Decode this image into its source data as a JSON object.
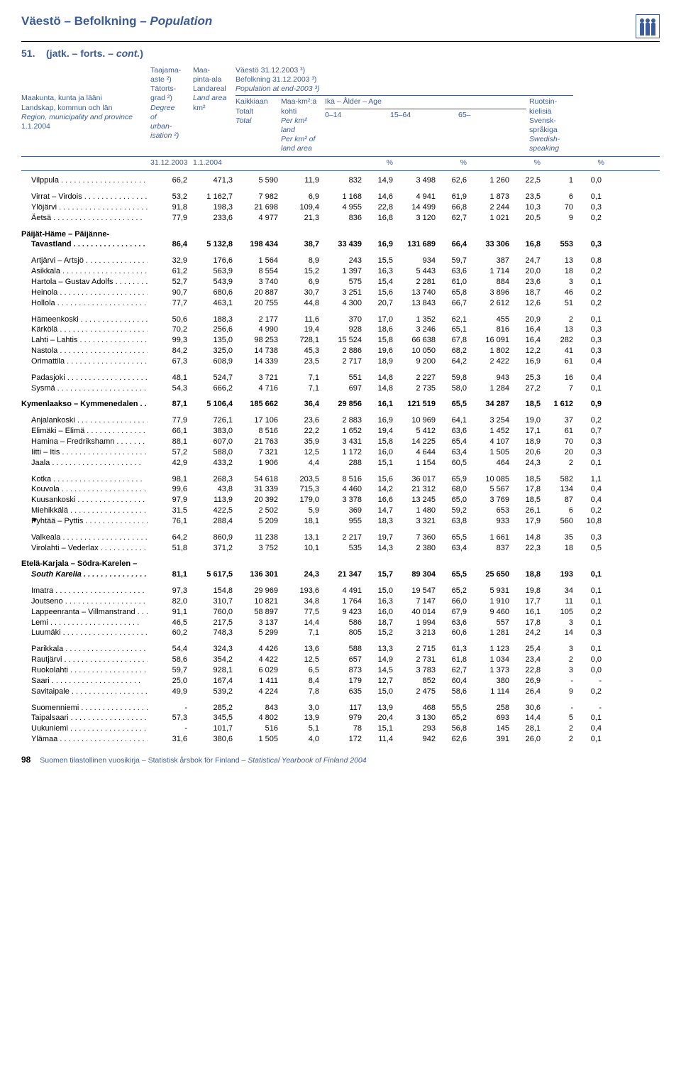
{
  "header": {
    "title_plain": "Väestö – Befolkning – ",
    "title_italic": "Population",
    "subtitle_prefix": "51.",
    "subtitle_rest": "(jatk. – forts. – ",
    "subtitle_italic": "cont.",
    "subtitle_close": ")"
  },
  "col_headers": {
    "c0_l1": "Maakunta, kunta ja lääni",
    "c0_l2": "Landskap, kommun och län",
    "c0_l3": "Region, municipality and province",
    "c0_l4": "1.1.2004",
    "c1_l1": "Taajama-",
    "c1_l2": "aste ²)",
    "c1_l3": "Tätorts-",
    "c1_l4": "grad ²)",
    "c1_l5": "Degree",
    "c1_l6": "of",
    "c1_l7": "urban-",
    "c1_l8": "isation ²)",
    "c2_l1": "Maa-",
    "c2_l2": "pinta-ala",
    "c2_l3": "Landareal",
    "c2_l4": "Land area",
    "c2_l5": "km²",
    "c3_l1": "Väestö 31.12.2003 ³)",
    "c3_l2": "Befolkning 31.12.2003 ³)",
    "c3_l3": "Population at end-2003 ³)",
    "c3_sub1": "Kaikkiaan",
    "c3_sub2": "Totalt",
    "c3_sub3": "Total",
    "c4_l1": "Maa-km²:ä",
    "c4_l2": "kohti",
    "c4_l3": "Per km² land",
    "c4_l4": "Per km² of",
    "c4_l5": "land area",
    "age_label": "Ikä – Ålder – Age",
    "age_0": "0–14",
    "age_15": "15–64",
    "age_65": "65–",
    "c12_l1": "Ruotsin-",
    "c12_l2": "kielisiä",
    "c12_l3": "Svensk-",
    "c12_l4": "språkiga",
    "c12_l5": "Swedish-",
    "c12_l6": "speaking",
    "date1": "31.12.2003",
    "date2": "1.1.2004",
    "pct": "%"
  },
  "rows": [
    {
      "t": "d",
      "ind": 1,
      "n": "Vilppula",
      "v": [
        "66,2",
        "471,3",
        "5 590",
        "11,9",
        "832",
        "14,9",
        "3 498",
        "62,6",
        "1 260",
        "22,5",
        "1",
        "0,0"
      ]
    },
    {
      "t": "sp"
    },
    {
      "t": "d",
      "ind": 1,
      "n": "Virrat – Virdois",
      "v": [
        "53,2",
        "1 162,7",
        "7 982",
        "6,9",
        "1 168",
        "14,6",
        "4 941",
        "61,9",
        "1 873",
        "23,5",
        "6",
        "0,1"
      ]
    },
    {
      "t": "d",
      "ind": 1,
      "n": "Ylöjärvi",
      "v": [
        "91,8",
        "198,3",
        "21 698",
        "109,4",
        "4 955",
        "22,8",
        "14 499",
        "66,8",
        "2 244",
        "10,3",
        "70",
        "0,3"
      ]
    },
    {
      "t": "d",
      "ind": 1,
      "n": "Äetsä",
      "v": [
        "77,9",
        "233,6",
        "4 977",
        "21,3",
        "836",
        "16,8",
        "3 120",
        "62,7",
        "1 021",
        "20,5",
        "9",
        "0,2"
      ]
    },
    {
      "t": "sp"
    },
    {
      "t": "h",
      "n": "Päijät-Häme – Päijänne-"
    },
    {
      "t": "d",
      "ind": 1,
      "b": true,
      "n": "Tavastland",
      "v": [
        "86,4",
        "5 132,8",
        "198 434",
        "38,7",
        "33 439",
        "16,9",
        "131 689",
        "66,4",
        "33 306",
        "16,8",
        "553",
        "0,3"
      ]
    },
    {
      "t": "sp"
    },
    {
      "t": "d",
      "ind": 1,
      "n": "Artjärvi – Artsjö",
      "v": [
        "32,9",
        "176,6",
        "1 564",
        "8,9",
        "243",
        "15,5",
        "934",
        "59,7",
        "387",
        "24,7",
        "13",
        "0,8"
      ]
    },
    {
      "t": "d",
      "ind": 1,
      "n": "Asikkala",
      "v": [
        "61,2",
        "563,9",
        "8 554",
        "15,2",
        "1 397",
        "16,3",
        "5 443",
        "63,6",
        "1 714",
        "20,0",
        "18",
        "0,2"
      ]
    },
    {
      "t": "d",
      "ind": 1,
      "n": "Hartola – Gustav Adolfs",
      "v": [
        "52,7",
        "543,9",
        "3 740",
        "6,9",
        "575",
        "15,4",
        "2 281",
        "61,0",
        "884",
        "23,6",
        "3",
        "0,1"
      ]
    },
    {
      "t": "d",
      "ind": 1,
      "n": "Heinola",
      "v": [
        "90,7",
        "680,6",
        "20 887",
        "30,7",
        "3 251",
        "15,6",
        "13 740",
        "65,8",
        "3 896",
        "18,7",
        "46",
        "0,2"
      ]
    },
    {
      "t": "d",
      "ind": 1,
      "n": "Hollola",
      "v": [
        "77,7",
        "463,1",
        "20 755",
        "44,8",
        "4 300",
        "20,7",
        "13 843",
        "66,7",
        "2 612",
        "12,6",
        "51",
        "0,2"
      ]
    },
    {
      "t": "sp"
    },
    {
      "t": "d",
      "ind": 1,
      "n": "Hämeenkoski",
      "v": [
        "50,6",
        "188,3",
        "2 177",
        "11,6",
        "370",
        "17,0",
        "1 352",
        "62,1",
        "455",
        "20,9",
        "2",
        "0,1"
      ]
    },
    {
      "t": "d",
      "ind": 1,
      "n": "Kärkölä",
      "v": [
        "70,2",
        "256,6",
        "4 990",
        "19,4",
        "928",
        "18,6",
        "3 246",
        "65,1",
        "816",
        "16,4",
        "13",
        "0,3"
      ]
    },
    {
      "t": "d",
      "ind": 1,
      "n": "Lahti – Lahtis",
      "v": [
        "99,3",
        "135,0",
        "98 253",
        "728,1",
        "15 524",
        "15,8",
        "66 638",
        "67,8",
        "16 091",
        "16,4",
        "282",
        "0,3"
      ]
    },
    {
      "t": "d",
      "ind": 1,
      "n": "Nastola",
      "v": [
        "84,2",
        "325,0",
        "14 738",
        "45,3",
        "2 886",
        "19,6",
        "10 050",
        "68,2",
        "1 802",
        "12,2",
        "41",
        "0,3"
      ]
    },
    {
      "t": "d",
      "ind": 1,
      "n": "Orimattila",
      "v": [
        "67,3",
        "608,9",
        "14 339",
        "23,5",
        "2 717",
        "18,9",
        "9 200",
        "64,2",
        "2 422",
        "16,9",
        "61",
        "0,4"
      ]
    },
    {
      "t": "sp"
    },
    {
      "t": "d",
      "ind": 1,
      "n": "Padasjoki",
      "v": [
        "48,1",
        "524,7",
        "3 721",
        "7,1",
        "551",
        "14,8",
        "2 227",
        "59,8",
        "943",
        "25,3",
        "16",
        "0,4"
      ]
    },
    {
      "t": "d",
      "ind": 1,
      "n": "Sysmä",
      "v": [
        "54,3",
        "666,2",
        "4 716",
        "7,1",
        "697",
        "14,8",
        "2 735",
        "58,0",
        "1 284",
        "27,2",
        "7",
        "0,1"
      ]
    },
    {
      "t": "sp"
    },
    {
      "t": "d",
      "ind": 0,
      "b": true,
      "n": "Kymenlaakso – Kymmenedalen . . .",
      "nodots": true,
      "v": [
        "87,1",
        "5 106,4",
        "185 662",
        "36,4",
        "29 856",
        "16,1",
        "121 519",
        "65,5",
        "34 287",
        "18,5",
        "1 612",
        "0,9"
      ]
    },
    {
      "t": "sp"
    },
    {
      "t": "d",
      "ind": 1,
      "n": "Anjalankoski",
      "v": [
        "77,9",
        "726,1",
        "17 106",
        "23,6",
        "2 883",
        "16,9",
        "10 969",
        "64,1",
        "3 254",
        "19,0",
        "37",
        "0,2"
      ]
    },
    {
      "t": "d",
      "ind": 1,
      "n": "Elimäki – Elimä",
      "v": [
        "66,1",
        "383,0",
        "8 516",
        "22,2",
        "1 652",
        "19,4",
        "5 412",
        "63,6",
        "1 452",
        "17,1",
        "61",
        "0,7"
      ]
    },
    {
      "t": "d",
      "ind": 1,
      "n": "Hamina – Fredrikshamn",
      "v": [
        "88,1",
        "607,0",
        "21 763",
        "35,9",
        "3 431",
        "15,8",
        "14 225",
        "65,4",
        "4 107",
        "18,9",
        "70",
        "0,3"
      ]
    },
    {
      "t": "d",
      "ind": 1,
      "n": "Iitti – Itis",
      "v": [
        "57,2",
        "588,0",
        "7 321",
        "12,5",
        "1 172",
        "16,0",
        "4 644",
        "63,4",
        "1 505",
        "20,6",
        "20",
        "0,3"
      ]
    },
    {
      "t": "d",
      "ind": 1,
      "n": "Jaala",
      "v": [
        "42,9",
        "433,2",
        "1 906",
        "4,4",
        "288",
        "15,1",
        "1 154",
        "60,5",
        "464",
        "24,3",
        "2",
        "0,1"
      ]
    },
    {
      "t": "sp"
    },
    {
      "t": "d",
      "ind": 1,
      "n": "Kotka",
      "v": [
        "98,1",
        "268,3",
        "54 618",
        "203,5",
        "8 516",
        "15,6",
        "36 017",
        "65,9",
        "10 085",
        "18,5",
        "582",
        "1,1"
      ]
    },
    {
      "t": "d",
      "ind": 1,
      "n": "Kouvola",
      "v": [
        "99,6",
        "43,8",
        "31 339",
        "715,3",
        "4 460",
        "14,2",
        "21 312",
        "68,0",
        "5 567",
        "17,8",
        "134",
        "0,4"
      ]
    },
    {
      "t": "d",
      "ind": 1,
      "n": "Kuusankoski",
      "v": [
        "97,9",
        "113,9",
        "20 392",
        "179,0",
        "3 378",
        "16,6",
        "13 245",
        "65,0",
        "3 769",
        "18,5",
        "87",
        "0,4"
      ]
    },
    {
      "t": "d",
      "ind": 1,
      "n": "Miehikkälä",
      "v": [
        "31,5",
        "422,5",
        "2 502",
        "5,9",
        "369",
        "14,7",
        "1 480",
        "59,2",
        "653",
        "26,1",
        "6",
        "0,2"
      ]
    },
    {
      "t": "d",
      "ind": 1,
      "n": "Pyhtää – Pyttis",
      "mark": "▼",
      "v": [
        "76,1",
        "288,4",
        "5 209",
        "18,1",
        "955",
        "18,3",
        "3 321",
        "63,8",
        "933",
        "17,9",
        "560",
        "10,8"
      ]
    },
    {
      "t": "sp"
    },
    {
      "t": "d",
      "ind": 1,
      "n": "Valkeala",
      "v": [
        "64,2",
        "860,9",
        "11 238",
        "13,1",
        "2 217",
        "19,7",
        "7 360",
        "65,5",
        "1 661",
        "14,8",
        "35",
        "0,3"
      ]
    },
    {
      "t": "d",
      "ind": 1,
      "n": "Virolahti – Vederlax",
      "v": [
        "51,8",
        "371,2",
        "3 752",
        "10,1",
        "535",
        "14,3",
        "2 380",
        "63,4",
        "837",
        "22,3",
        "18",
        "0,5"
      ]
    },
    {
      "t": "sp"
    },
    {
      "t": "h",
      "n": "Etelä-Karjala – Södra-Karelen –"
    },
    {
      "t": "d",
      "ind": 1,
      "b": true,
      "it": true,
      "n": "South Karelia",
      "v": [
        "81,1",
        "5 617,5",
        "136 301",
        "24,3",
        "21 347",
        "15,7",
        "89 304",
        "65,5",
        "25 650",
        "18,8",
        "193",
        "0,1"
      ]
    },
    {
      "t": "sp"
    },
    {
      "t": "d",
      "ind": 1,
      "n": "Imatra",
      "v": [
        "97,3",
        "154,8",
        "29 969",
        "193,6",
        "4 491",
        "15,0",
        "19 547",
        "65,2",
        "5 931",
        "19,8",
        "34",
        "0,1"
      ]
    },
    {
      "t": "d",
      "ind": 1,
      "n": "Joutseno",
      "v": [
        "82,0",
        "310,7",
        "10 821",
        "34,8",
        "1 764",
        "16,3",
        "7 147",
        "66,0",
        "1 910",
        "17,7",
        "11",
        "0,1"
      ]
    },
    {
      "t": "d",
      "ind": 1,
      "n": "Lappeenranta – Villmanstrand . . .",
      "nodots": true,
      "v": [
        "91,1",
        "760,0",
        "58 897",
        "77,5",
        "9 423",
        "16,0",
        "40 014",
        "67,9",
        "9 460",
        "16,1",
        "105",
        "0,2"
      ]
    },
    {
      "t": "d",
      "ind": 1,
      "n": "Lemi",
      "v": [
        "46,5",
        "217,5",
        "3 137",
        "14,4",
        "586",
        "18,7",
        "1 994",
        "63,6",
        "557",
        "17,8",
        "3",
        "0,1"
      ]
    },
    {
      "t": "d",
      "ind": 1,
      "n": "Luumäki",
      "v": [
        "60,2",
        "748,3",
        "5 299",
        "7,1",
        "805",
        "15,2",
        "3 213",
        "60,6",
        "1 281",
        "24,2",
        "14",
        "0,3"
      ]
    },
    {
      "t": "sp"
    },
    {
      "t": "d",
      "ind": 1,
      "n": "Parikkala",
      "v": [
        "54,4",
        "324,3",
        "4 426",
        "13,6",
        "588",
        "13,3",
        "2 715",
        "61,3",
        "1 123",
        "25,4",
        "3",
        "0,1"
      ]
    },
    {
      "t": "d",
      "ind": 1,
      "n": "Rautjärvi",
      "v": [
        "58,6",
        "354,2",
        "4 422",
        "12,5",
        "657",
        "14,9",
        "2 731",
        "61,8",
        "1 034",
        "23,4",
        "2",
        "0,0"
      ]
    },
    {
      "t": "d",
      "ind": 1,
      "n": "Ruokolahti",
      "v": [
        "59,7",
        "928,1",
        "6 029",
        "6,5",
        "873",
        "14,5",
        "3 783",
        "62,7",
        "1 373",
        "22,8",
        "3",
        "0,0"
      ]
    },
    {
      "t": "d",
      "ind": 1,
      "n": "Saari",
      "v": [
        "25,0",
        "167,4",
        "1 411",
        "8,4",
        "179",
        "12,7",
        "852",
        "60,4",
        "380",
        "26,9",
        "-",
        "-"
      ]
    },
    {
      "t": "d",
      "ind": 1,
      "n": "Savitaipale",
      "v": [
        "49,9",
        "539,2",
        "4 224",
        "7,8",
        "635",
        "15,0",
        "2 475",
        "58,6",
        "1 114",
        "26,4",
        "9",
        "0,2"
      ]
    },
    {
      "t": "sp"
    },
    {
      "t": "d",
      "ind": 1,
      "n": "Suomenniemi",
      "v": [
        "-",
        "285,2",
        "843",
        "3,0",
        "117",
        "13,9",
        "468",
        "55,5",
        "258",
        "30,6",
        "-",
        "-"
      ]
    },
    {
      "t": "d",
      "ind": 1,
      "n": "Taipalsaari",
      "v": [
        "57,3",
        "345,5",
        "4 802",
        "13,9",
        "979",
        "20,4",
        "3 130",
        "65,2",
        "693",
        "14,4",
        "5",
        "0,1"
      ]
    },
    {
      "t": "d",
      "ind": 1,
      "n": "Uukuniemi",
      "v": [
        "-",
        "101,7",
        "516",
        "5,1",
        "78",
        "15,1",
        "293",
        "56,8",
        "145",
        "28,1",
        "2",
        "0,4"
      ]
    },
    {
      "t": "d",
      "ind": 1,
      "n": "Ylämaa",
      "v": [
        "31,6",
        "380,6",
        "1 505",
        "4,0",
        "172",
        "11,4",
        "942",
        "62,6",
        "391",
        "26,0",
        "2",
        "0,1"
      ]
    }
  ],
  "footer": {
    "page_num": "98",
    "text_plain": "Suomen tilastollinen vuosikirja – Statistisk årsbok för Finland – ",
    "text_italic": "Statistical Yearbook of Finland 2004"
  }
}
